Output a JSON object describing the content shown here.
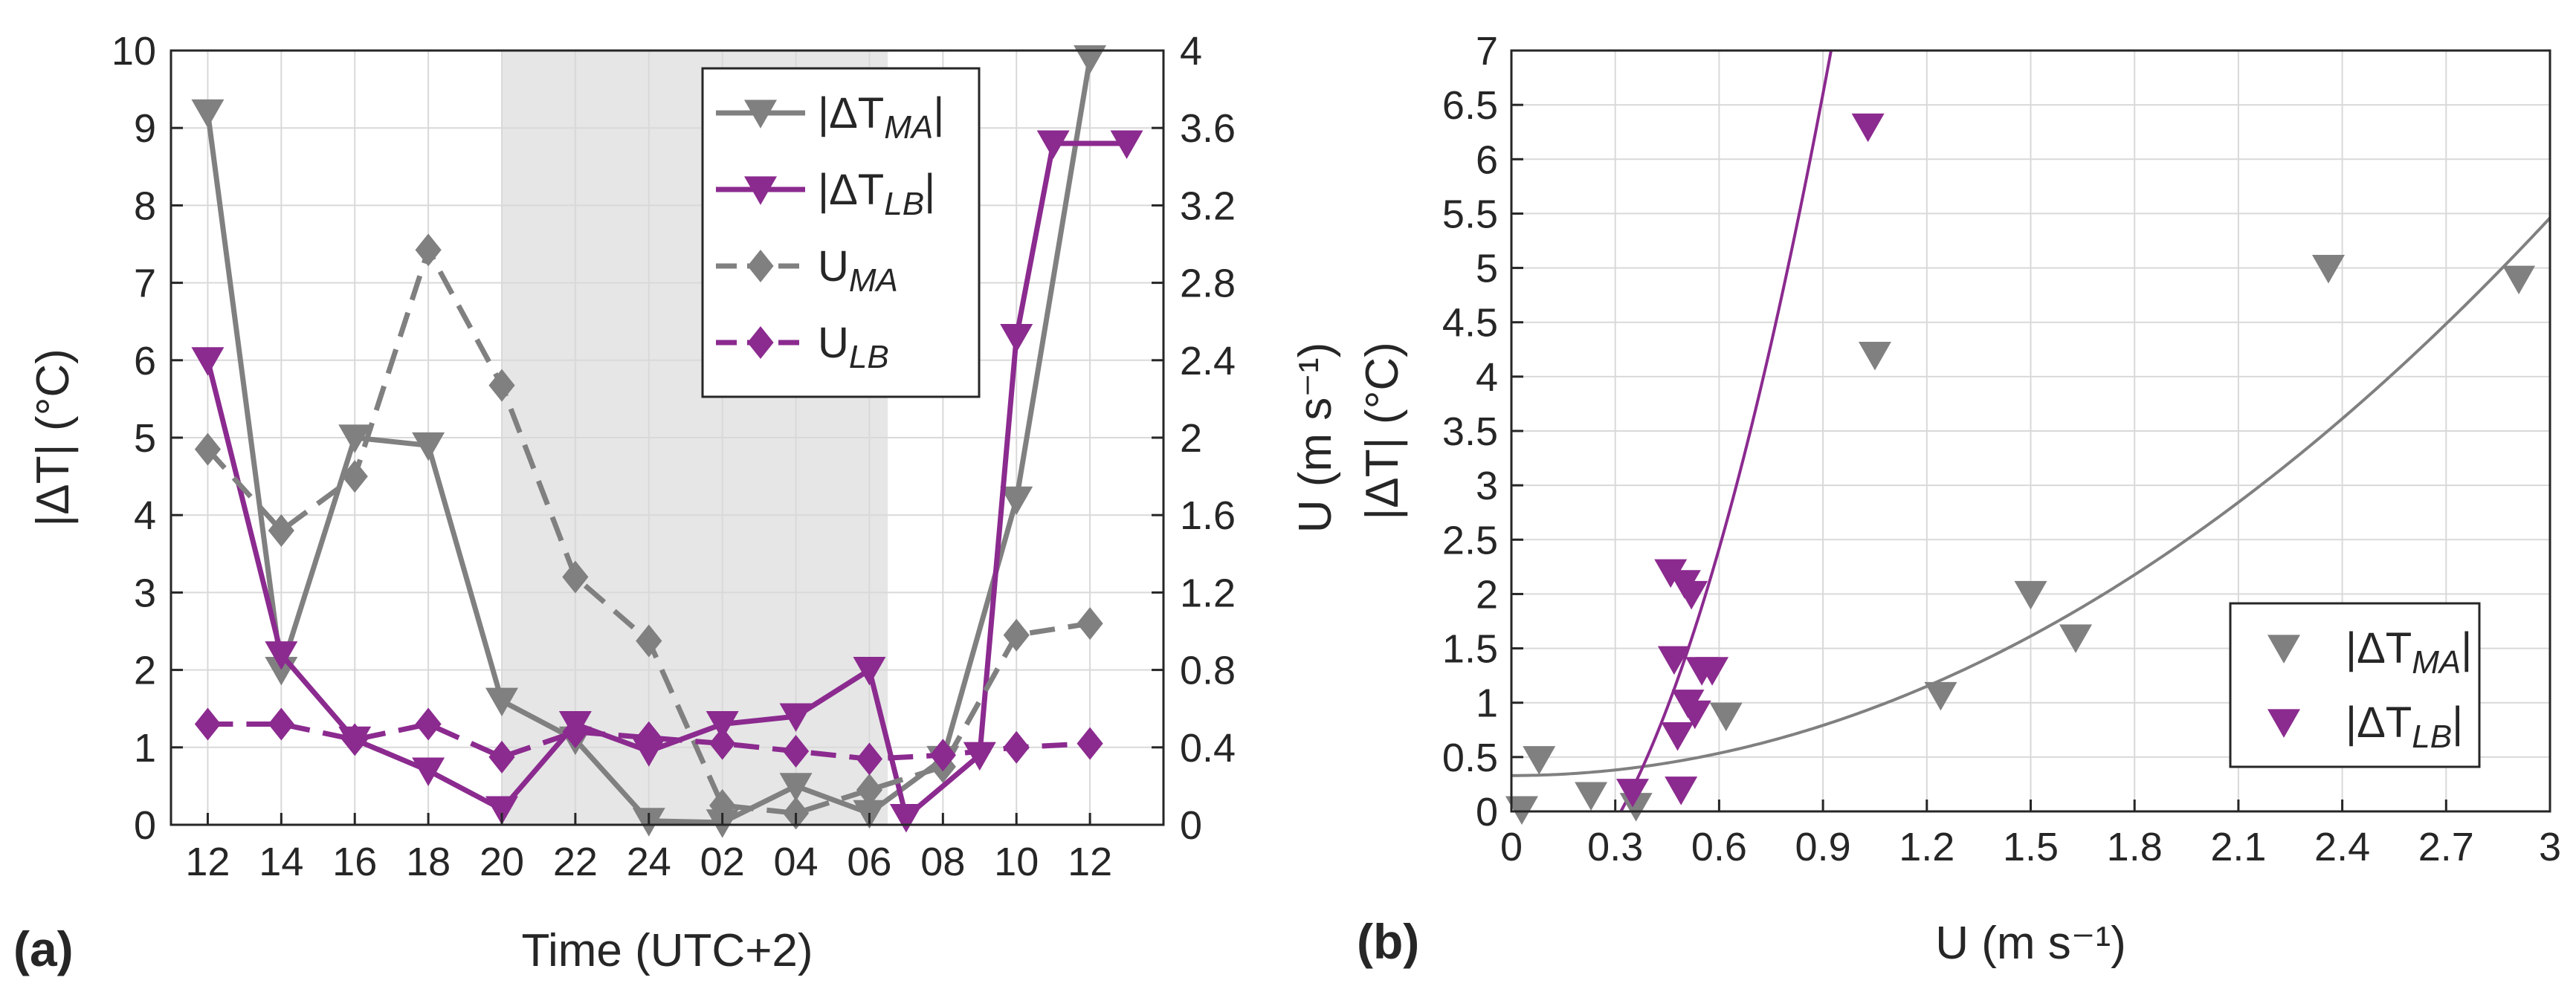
{
  "chart_data": [
    {
      "panel": "a",
      "panel_label": "(a)",
      "type": "line",
      "xlabel": "Time (UTC+2)",
      "ylabel_left": "|ΔT| (°C)",
      "ylabel_right": "U (m s-1)",
      "x_ticks": [
        "12",
        "14",
        "16",
        "18",
        "20",
        "22",
        "24",
        "02",
        "04",
        "06",
        "08",
        "10",
        "12"
      ],
      "ylim_left": [
        0,
        10
      ],
      "ylim_right": [
        0,
        4
      ],
      "y_ticks_left": [
        "0",
        "1",
        "2",
        "3",
        "4",
        "5",
        "6",
        "7",
        "8",
        "9",
        "10"
      ],
      "y_ticks_right": [
        "0",
        "0.4",
        "0.8",
        "1.2",
        "1.6",
        "2",
        "2.4",
        "2.8",
        "3.2",
        "3.6",
        "4"
      ],
      "grid": true,
      "shaded_period": [
        20,
        30.5
      ],
      "legend_position": "top-right",
      "series": [
        {
          "name": "|ΔT_MA|",
          "axis": "left",
          "color": "#808080",
          "style": "solid",
          "marker": "triangle-down",
          "x": [
            12,
            14,
            16,
            18,
            20,
            22,
            24,
            26,
            28,
            30,
            32,
            34,
            36
          ],
          "y": [
            9.2,
            2.0,
            5.0,
            4.9,
            1.6,
            1.1,
            0.05,
            0.03,
            0.5,
            0.15,
            0.85,
            4.2,
            9.9
          ]
        },
        {
          "name": "|ΔT_LB|",
          "axis": "left",
          "color": "#8B2A8F",
          "style": "solid",
          "marker": "triangle-down",
          "x": [
            12,
            14,
            16,
            18,
            20,
            22,
            24,
            26,
            28,
            30,
            31,
            33,
            34,
            35,
            37
          ],
          "y": [
            6.0,
            2.2,
            1.1,
            0.7,
            0.2,
            1.3,
            0.95,
            1.3,
            1.4,
            2.0,
            0.1,
            0.9,
            6.3,
            8.8,
            8.8
          ]
        },
        {
          "name": "U_MA",
          "axis": "right",
          "color": "#808080",
          "style": "dashed",
          "marker": "diamond",
          "x": [
            12,
            14,
            16,
            18,
            20,
            22,
            24,
            26,
            28,
            30,
            32,
            34,
            36
          ],
          "y": [
            1.94,
            1.52,
            1.8,
            2.97,
            2.27,
            1.28,
            0.95,
            0.1,
            0.06,
            0.18,
            0.3,
            0.98,
            1.04
          ]
        },
        {
          "name": "U_LB",
          "axis": "right",
          "color": "#8B2A8F",
          "style": "dashed",
          "marker": "diamond",
          "x": [
            12,
            14,
            16,
            18,
            20,
            22,
            24,
            26,
            28,
            30,
            32,
            34,
            36
          ],
          "y": [
            0.52,
            0.52,
            0.44,
            0.52,
            0.35,
            0.48,
            0.45,
            0.42,
            0.38,
            0.34,
            0.36,
            0.4,
            0.42
          ]
        }
      ],
      "legend_entries": [
        {
          "label_main": "|ΔT",
          "label_sub": "MA",
          "label_end": "|",
          "series": 0
        },
        {
          "label_main": "|ΔT",
          "label_sub": "LB",
          "label_end": "|",
          "series": 1
        },
        {
          "label_main": "U",
          "label_sub": "MA",
          "label_end": "",
          "series": 2
        },
        {
          "label_main": "U",
          "label_sub": "LB",
          "label_end": "",
          "series": 3
        }
      ]
    },
    {
      "panel": "b",
      "panel_label": "(b)",
      "type": "scatter",
      "xlabel": "U (m s-1)",
      "ylabel": "|ΔT| (°C)",
      "xlim": [
        0,
        3
      ],
      "ylim": [
        0,
        7
      ],
      "x_ticks": [
        "0",
        "0.3",
        "0.6",
        "0.9",
        "1.2",
        "1.5",
        "1.8",
        "2.1",
        "2.4",
        "2.7",
        "3"
      ],
      "y_ticks": [
        "0",
        "0.5",
        "1",
        "1.5",
        "2",
        "2.5",
        "3",
        "3.5",
        "4",
        "4.5",
        "5",
        "5.5",
        "6",
        "6.5",
        "7"
      ],
      "grid": true,
      "legend_position": "bottom-right",
      "series": [
        {
          "name": "|ΔT_MA|",
          "color": "#808080",
          "marker": "triangle-down",
          "x": [
            0.03,
            0.08,
            0.23,
            0.36,
            0.62,
            1.05,
            1.24,
            1.5,
            1.63,
            2.36,
            2.91
          ],
          "y": [
            0.02,
            0.48,
            0.15,
            0.05,
            0.88,
            4.2,
            1.07,
            2.0,
            1.6,
            5.0,
            4.9
          ]
        },
        {
          "name": "|ΔT_LB|",
          "color": "#8B2A8F",
          "marker": "triangle-down",
          "x": [
            0.35,
            0.46,
            0.47,
            0.48,
            0.49,
            0.5,
            0.51,
            0.52,
            0.53,
            0.55,
            0.58,
            1.03
          ],
          "y": [
            0.18,
            2.2,
            1.4,
            0.7,
            0.2,
            2.1,
            1.0,
            2.0,
            0.9,
            1.3,
            1.3,
            6.3
          ]
        }
      ],
      "fits": [
        {
          "series": "|ΔT_MA|",
          "color": "#808080",
          "model": "quadratic",
          "a": 0.57,
          "b": 0.0,
          "c": 0.33
        },
        {
          "series": "|ΔT_LB|",
          "color": "#8B2A8F",
          "model": "quadratic",
          "a": 9.3,
          "b": 0.0,
          "c": -0.93
        }
      ],
      "legend_entries": [
        {
          "label_main": "|ΔT",
          "label_sub": "MA",
          "label_end": "|",
          "series": 0
        },
        {
          "label_main": "|ΔT",
          "label_sub": "LB",
          "label_end": "|",
          "series": 1
        }
      ]
    }
  ]
}
